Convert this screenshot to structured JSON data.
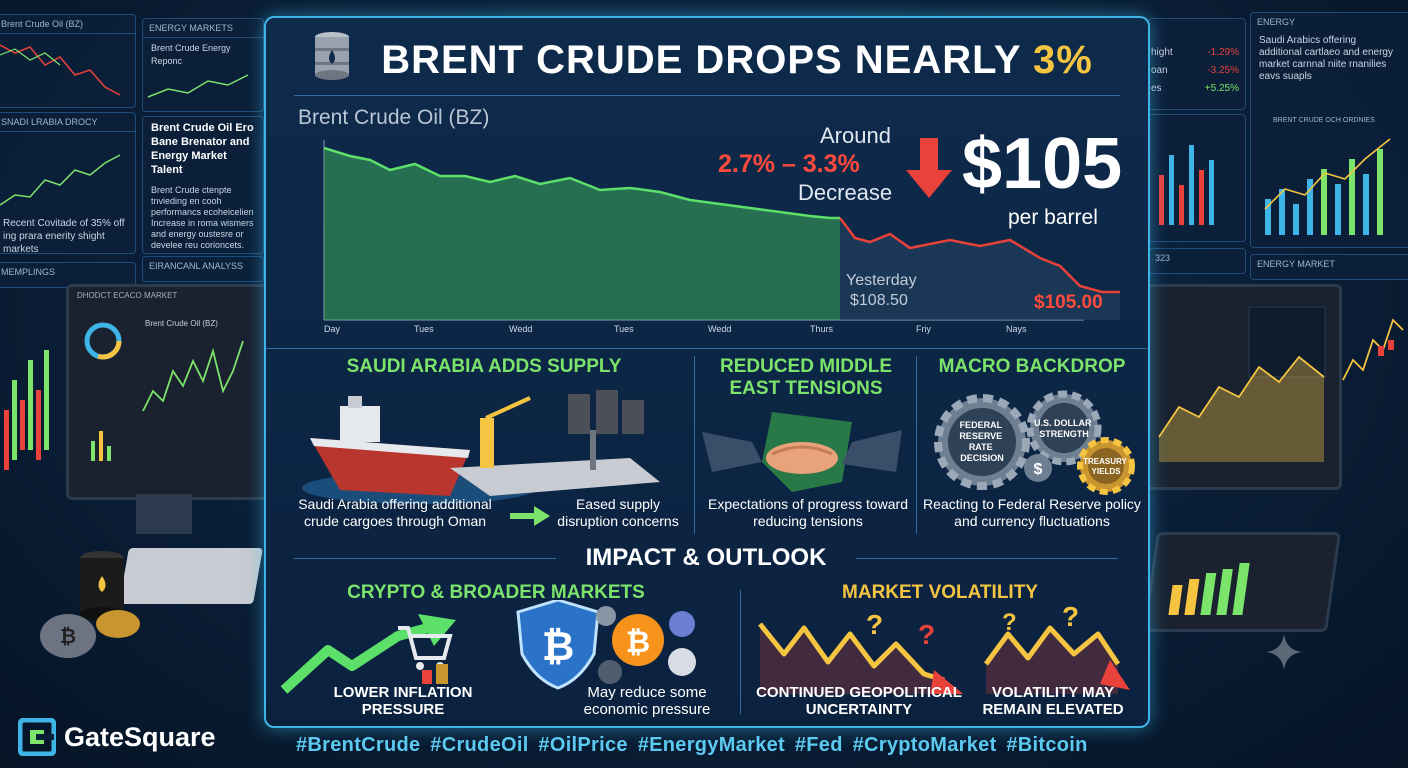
{
  "title": {
    "main": "BRENT CRUDE DROPS NEARLY ",
    "pct": "3%"
  },
  "chart_data": {
    "type": "line",
    "title": "Brent Crude Oil (BZ)",
    "categories": [
      "Day",
      "Tues",
      "Wedd",
      "Tues",
      "Wedd",
      "Thurs",
      "Friy",
      "Nays"
    ],
    "values": [
      110.0,
      109.6,
      109.2,
      109.4,
      108.3,
      107.4,
      106.8,
      105.0
    ],
    "annotations": {
      "around": "Around",
      "range": "2.7% – 3.3%",
      "decrease": "Decrease",
      "price": "$105",
      "unit": "per barrel",
      "yesterday_label": "Yesterday",
      "yesterday_value": "$108.50",
      "current_value": "$105.00"
    }
  },
  "sections": {
    "saudi": {
      "title": "SAUDI ARABIA ADDS SUPPLY",
      "caption_left": "Saudi Arabia offering additional crude cargoes through Oman",
      "caption_right": "Eased supply disruption concerns"
    },
    "tensions": {
      "title_line1": "REDUCED MIDDLE",
      "title_line2": "EAST TENSIONS",
      "caption": "Expectations of progress toward reducing tensions"
    },
    "macro": {
      "title": "MACRO BACKDROP",
      "gear1": [
        "FEDERAL",
        "RESERVE",
        "RATE",
        "DECISION"
      ],
      "gear2": [
        "U.S. DOLLAR",
        "STRENGTH"
      ],
      "gear3": [
        "TREASURY",
        "YIELDS"
      ],
      "caption": "Reacting to Federal Reserve policy and currency fluctuations"
    }
  },
  "impact": {
    "title": "IMPACT & OUTLOOK",
    "crypto": {
      "title": "CRYPTO & BROADER MARKETS",
      "left_caption": "LOWER INFLATION PRESSURE",
      "right_caption": "May reduce some economic pressure"
    },
    "volatility": {
      "title": "MARKET VOLATILITY",
      "left_caption": "CONTINUED GEOPOLITICAL UNCERTAINTY",
      "right_caption": "VOLATILITY MAY REMAIN ELEVATED"
    }
  },
  "hashtags": "#BrentCrude #CrudeOil #OilPrice #EnergyMarket #Fed #CryptoMarket #Bitcoin",
  "brand": "GateSquare",
  "background": {
    "left_top_title": "Brent Crude Oil (BZ)",
    "energy_markets": "ENERGY MARKETS",
    "energy_report": "Brent Crude Energy Reponc",
    "saudi_header": "SNADI LRABIA DROCY",
    "news_title": "Brent Crude Oil Ero Bane Brenator and Energy Market Talent",
    "news_body": "Brent Crude ctenpte tnvieding en cooh performancs ecoheicelien Increase in roma wismers and energy oustesre or develee reu corioncets.",
    "left_news": "Recent Covitade of 35% off ing prara enerity shight markets",
    "financial_analysis": "EIRANCANL ANALYSS",
    "emplings": "MEMPLINGS",
    "monitor_title": "DHODCT ECACO MARKET",
    "monitor_chart": "Brent Crude Oil (BZ)",
    "right_energy": "ENERGY",
    "right_text": "Saudi Arabics offering additional cartlaeo and energy market carnnal niite rnanilies eavs suapls",
    "right_sub": "BRENT CRUDE OCH ORDNIES",
    "right_energy_market": "ENERGY MARKET",
    "right_rows": [
      {
        "label": "hight",
        "value": "-1.29%"
      },
      {
        "label": "oan",
        "value": "-3.25%"
      },
      {
        "label": "es",
        "value": "+5.25%"
      }
    ],
    "right_mid": "323"
  },
  "colors": {
    "accent": "#3fb4e6",
    "up": "#7ce36b",
    "down": "#e8423b",
    "highlight": "#f5c542"
  }
}
